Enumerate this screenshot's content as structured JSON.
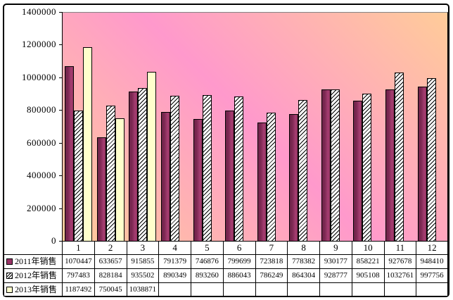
{
  "chart_data": {
    "type": "bar",
    "title": "",
    "xlabel": "",
    "ylabel": "",
    "categories": [
      "1",
      "2",
      "3",
      "4",
      "5",
      "6",
      "7",
      "8",
      "9",
      "10",
      "11",
      "12"
    ],
    "series": [
      {
        "name": "2011年销售",
        "fill": "solid",
        "color": "#993366",
        "values": [
          1070447,
          633657,
          915855,
          791379,
          746876,
          799699,
          723818,
          778382,
          930177,
          858221,
          927678,
          948410
        ]
      },
      {
        "name": "2012年销售",
        "fill": "diagonal-hatch",
        "color": "#FFFFFF",
        "values": [
          797483,
          828184,
          935502,
          890349,
          893260,
          886043,
          786249,
          864304,
          928777,
          905108,
          1032761,
          997756
        ]
      },
      {
        "name": "2013年销售",
        "fill": "solid",
        "color": "#FFFFCC",
        "values": [
          1187492,
          750045,
          1038871,
          null,
          null,
          null,
          null,
          null,
          null,
          null,
          null,
          null
        ]
      }
    ],
    "ylim": [
      0,
      1400000
    ],
    "ytick_step": 200000,
    "yticks": [
      "0",
      "200000",
      "400000",
      "600000",
      "800000",
      "1000000",
      "1200000",
      "1400000"
    ],
    "grid": false,
    "legend_position": "data-table-left-column",
    "data_table_attached": true,
    "plot_background": {
      "type": "diagonal-gradient",
      "colors": [
        "#FFCC99",
        "#FF99CC",
        "#FFCC99"
      ]
    }
  },
  "colors": {
    "series_2011": "#993366",
    "series_2012_pattern_bg": "#FFFFFF",
    "series_2013": "#FFFFCC",
    "plot_pink": "#FF99CC",
    "plot_orange": "#FFCC99",
    "axis": "#000000",
    "plot_top_border": "#848484"
  }
}
